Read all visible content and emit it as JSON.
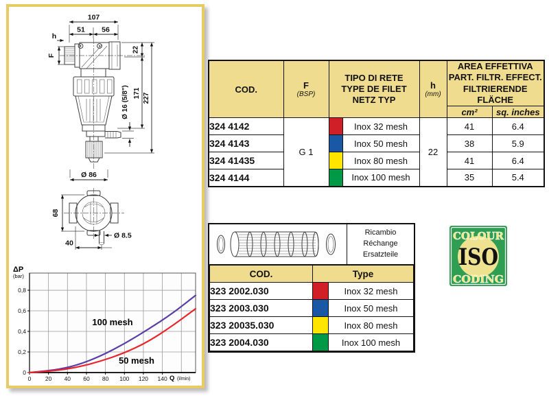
{
  "colors": {
    "panel_border": "#e9cb66",
    "table_header_bg": "#f0dc8e",
    "table_border": "#111111",
    "grid": "#9a9a9a",
    "curve_100_mesh": "#5b3ea7",
    "curve_50_mesh": "#e8252b",
    "chip_red": "#d01f27",
    "chip_blue": "#1a57a5",
    "chip_yellow": "#ffe500",
    "chip_green": "#009a47",
    "iso_green": "#2f9e53",
    "iso_circle": "#eee291",
    "iso_text": "#f3e87f"
  },
  "front_view": {
    "dim_total_width": "107",
    "dim_left_width": "51",
    "dim_right_width": "56",
    "dim_h": "h",
    "dim_f": "F",
    "dim_right_height": "22",
    "dim_body_height": "171",
    "dim_total_height": "227",
    "dim_inner_diameter": "Ø 16 (5/8\")",
    "dim_bowl_diameter": "Ø 86"
  },
  "side_view": {
    "dim_height": "68",
    "dim_width": "40",
    "dim_outlet_diameter": "Ø 8.5"
  },
  "chart_data": {
    "type": "line",
    "title": "",
    "xlabel_symbol": "Q",
    "xlabel_unit": "(l/min)",
    "ylabel_symbol": "ΔP",
    "ylabel_unit": "(bar)",
    "xlim": [
      0,
      175
    ],
    "ylim": [
      0,
      0.967
    ],
    "x_ticks": [
      0,
      20,
      40,
      60,
      80,
      100,
      120,
      140
    ],
    "x_tick_labels": [
      "0",
      "20",
      "40",
      "60",
      "80",
      "100",
      "120",
      "140"
    ],
    "y_ticks": [
      0,
      0.2,
      0.4,
      0.6,
      0.8
    ],
    "y_tick_labels": [
      "0",
      "0,2",
      "0,4",
      "0,6",
      "0,8"
    ],
    "grid_x": [
      20,
      40,
      60,
      80,
      100,
      120,
      140,
      160
    ],
    "grid_y": [
      0.2,
      0.4,
      0.6,
      0.8
    ],
    "grid_on": true,
    "legend_position": "inline-labels",
    "series": [
      {
        "name": "100 mesh",
        "color": "#5b3ea7",
        "x": [
          0,
          25,
          50,
          75,
          100,
          125,
          150,
          175
        ],
        "y": [
          0,
          0.02,
          0.07,
          0.16,
          0.28,
          0.42,
          0.57,
          0.75
        ]
      },
      {
        "name": "50 mesh",
        "color": "#e8252b",
        "x": [
          0,
          25,
          50,
          75,
          100,
          125,
          150,
          175
        ],
        "y": [
          0,
          0.015,
          0.05,
          0.11,
          0.19,
          0.3,
          0.45,
          0.62
        ]
      }
    ]
  },
  "main_table": {
    "headers": {
      "cod": "COD.",
      "f": "F",
      "f_sub": "(BSP)",
      "type": [
        "TIPO DI RETE",
        "TYPE DE FILET",
        "NETZ TYP"
      ],
      "h": "h",
      "h_sub": "(mm)",
      "area": [
        "AREA EFFETTIVA",
        "PART. FILTR. EFFECT.",
        "FILTRIERENDE FLÄCHE"
      ],
      "area_cm": "cm²",
      "area_sq": "sq. inches"
    },
    "f_value": "G 1",
    "h_value": "22",
    "rows": [
      {
        "cod": "324 4142",
        "color": "#d01f27",
        "type": "Inox 32 mesh",
        "cm2": "41",
        "sq": "6.4"
      },
      {
        "cod": "324 4143",
        "color": "#1a57a5",
        "type": "Inox 50 mesh",
        "cm2": "38",
        "sq": "5.9"
      },
      {
        "cod": "324 41435",
        "color": "#ffe500",
        "type": "Inox 80 mesh",
        "cm2": "41",
        "sq": "6.4"
      },
      {
        "cod": "324 4144",
        "color": "#009a47",
        "type": "Inox 100 mesh",
        "cm2": "35",
        "sq": "5.4"
      }
    ]
  },
  "spare_table": {
    "caption": [
      "Ricambio",
      "Réchange",
      "Ersatzteile"
    ],
    "headers": {
      "cod": "COD.",
      "type": "Type"
    },
    "rows": [
      {
        "cod": "323 2002.030",
        "color": "#d01f27",
        "type": "Inox 32 mesh"
      },
      {
        "cod": "323 2003.030",
        "color": "#1a57a5",
        "type": "Inox 50 mesh"
      },
      {
        "cod": "323 20035.030",
        "color": "#ffe500",
        "type": "Inox 80 mesh"
      },
      {
        "cod": "323 2004.030",
        "color": "#009a47",
        "type": "Inox 100 mesh"
      }
    ]
  },
  "iso_logo": {
    "line1": "COLOUR",
    "line2": "ISO",
    "line3": "CODING"
  }
}
